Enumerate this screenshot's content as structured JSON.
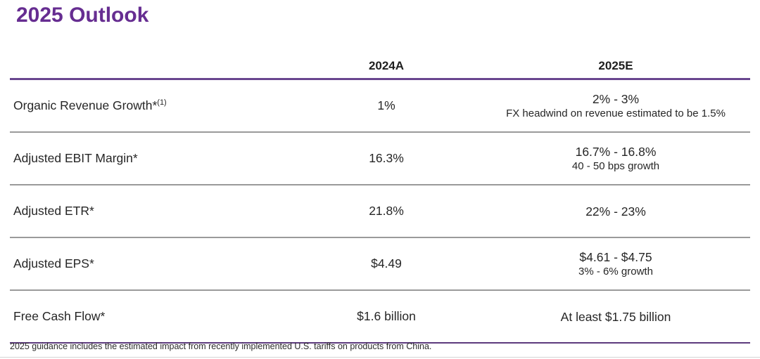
{
  "title": "2025 Outlook",
  "colors": {
    "accent_purple": "#662d91",
    "header_rule_purple": "#69468f",
    "bottom_rule_purple": "#5c3a7d",
    "row_divider_gray": "#9a9a9a",
    "text": "#262626"
  },
  "table": {
    "header": {
      "col_2024": "2024A",
      "col_2025": "2025E"
    },
    "rows": [
      {
        "label": "Organic Revenue Growth*",
        "label_sup": "(1)",
        "v2024": "1%",
        "v2025": "2% - 3%",
        "v2025_sub": "FX headwind on revenue estimated to be 1.5%"
      },
      {
        "label": "Adjusted EBIT Margin*",
        "label_sup": "",
        "v2024": "16.3%",
        "v2025": "16.7% - 16.8%",
        "v2025_sub": "40 - 50 bps growth"
      },
      {
        "label": "Adjusted ETR*",
        "label_sup": "",
        "v2024": "21.8%",
        "v2025": "22% - 23%",
        "v2025_sub": ""
      },
      {
        "label": "Adjusted EPS*",
        "label_sup": "",
        "v2024": "$4.49",
        "v2025": "$4.61 - $4.75",
        "v2025_sub": "3% - 6% growth"
      },
      {
        "label": "Free Cash Flow*",
        "label_sup": "",
        "v2024": "$1.6 billion",
        "v2025": "At least $1.75 billion",
        "v2025_sub": ""
      }
    ]
  },
  "footnote": "2025 guidance includes the estimated impact from recently implemented U.S. tariffs on products from China."
}
